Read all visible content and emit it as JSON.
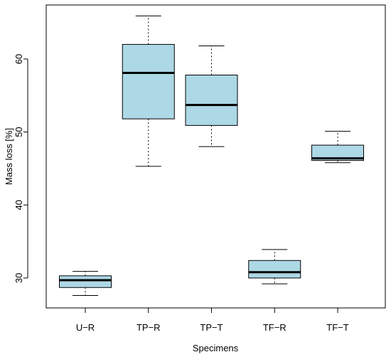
{
  "chart_data": {
    "type": "box",
    "title": "",
    "xlabel": "Specimens",
    "ylabel": "Mass loss [%]",
    "ylim": [
      25.9,
      67.4
    ],
    "yticks": [
      30,
      40,
      50,
      60
    ],
    "categories": [
      "U−R",
      "TP−R",
      "TP−T",
      "TF−R",
      "TF−T"
    ],
    "boxes": [
      {
        "min": 27.6,
        "q1": 28.7,
        "median": 29.7,
        "q3": 30.3,
        "max": 30.9
      },
      {
        "min": 45.3,
        "q1": 51.8,
        "median": 58.1,
        "q3": 62.0,
        "max": 65.9
      },
      {
        "min": 48.0,
        "q1": 50.9,
        "median": 53.7,
        "q3": 57.8,
        "max": 61.8
      },
      {
        "min": 29.2,
        "q1": 30.0,
        "median": 30.8,
        "q3": 32.4,
        "max": 33.9
      },
      {
        "min": 45.8,
        "q1": 46.1,
        "median": 46.4,
        "q3": 48.2,
        "max": 50.1
      }
    ],
    "box_fill": "#add8e6",
    "grid": false,
    "legend": "none"
  }
}
